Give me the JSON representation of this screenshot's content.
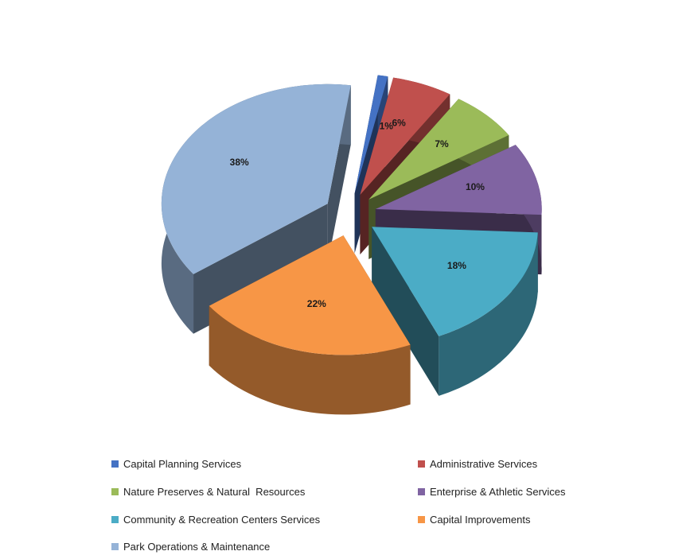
{
  "chart_data": {
    "type": "pie",
    "title": "",
    "series": [
      {
        "name": "Capital Planning Services",
        "value": 1,
        "label": "1%",
        "color": "#4472C4"
      },
      {
        "name": "Administrative Services",
        "value": 6,
        "label": "6%",
        "color": "#C0504D"
      },
      {
        "name": "Nature Preserves & Natural  Resources",
        "value": 7,
        "label": "7%",
        "color": "#9BBB59"
      },
      {
        "name": "Enterprise & Athletic Services",
        "value": 10,
        "label": "10%",
        "color": "#8064A2"
      },
      {
        "name": "Community & Recreation Centers Services",
        "value": 18,
        "label": "18%",
        "color": "#4BACC6"
      },
      {
        "name": "Capital Improvements",
        "value": 22,
        "label": "22%",
        "color": "#F79646"
      },
      {
        "name": "Park Operations & Maintenance",
        "value": 38,
        "label": "38%",
        "color": "#95B3D7"
      }
    ],
    "legend_position": "bottom",
    "style": "3d exploded pie"
  },
  "legend": {
    "items": [
      "Capital Planning Services",
      "Administrative Services",
      "Nature Preserves & Natural  Resources",
      "Enterprise & Athletic Services",
      "Community & Recreation Centers Services",
      "Capital Improvements",
      "Park Operations & Maintenance"
    ]
  }
}
